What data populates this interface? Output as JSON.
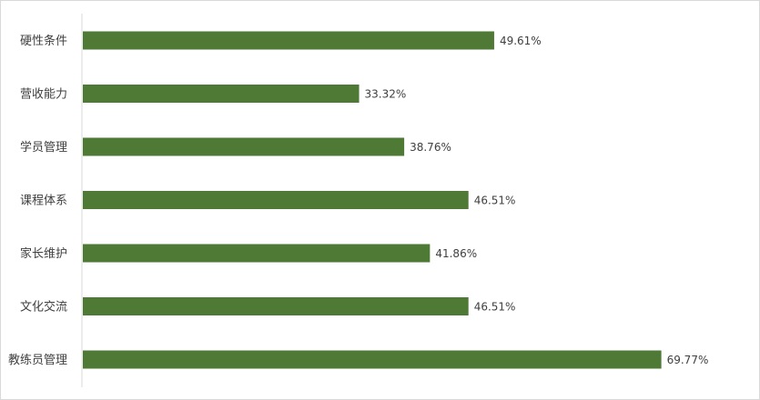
{
  "chart_data": {
    "type": "bar",
    "orientation": "horizontal",
    "title": "",
    "xlabel": "",
    "ylabel": "",
    "categories": [
      "硬性条件",
      "营收能力",
      "学员管理",
      "课程体系",
      "家长维护",
      "文化交流",
      "教练员管理"
    ],
    "values": [
      49.61,
      33.32,
      38.76,
      46.51,
      41.86,
      46.51,
      69.77
    ],
    "value_labels": [
      "49.61%",
      "33.32%",
      "38.76%",
      "46.51%",
      "41.86%",
      "46.51%",
      "69.77%"
    ],
    "xlim": [
      0,
      70
    ],
    "grid": false,
    "legend": "none",
    "bar_color": "#4f7a35",
    "axis_color": "#d9d9d9",
    "text_color": "#404040"
  }
}
